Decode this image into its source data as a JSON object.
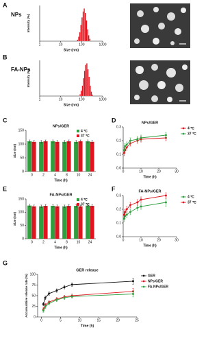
{
  "chart_data": [
    {
      "type": "histogram",
      "panel": "A",
      "label": "NPs",
      "xlabel": "Size (nm)",
      "ylabel": "Intensity (%)",
      "log_x": true,
      "xlim": [
        1,
        1000
      ],
      "xticks": [
        1,
        10,
        100,
        1000
      ],
      "ylim": [
        0,
        12
      ],
      "color": "#e0141e",
      "bins": [
        60,
        68,
        77,
        87,
        98,
        111,
        125,
        141,
        160,
        181,
        204,
        231,
        261
      ],
      "values": [
        0.5,
        1.5,
        3,
        5.5,
        8,
        10,
        11,
        9.5,
        7,
        4,
        2,
        0.8
      ]
    },
    {
      "type": "histogram",
      "panel": "B",
      "label": "FA-NPs",
      "xlabel": "Size (nm)",
      "ylabel": "Intensity (%)",
      "log_x": true,
      "xlim": [
        1,
        1000
      ],
      "xticks": [
        1,
        10,
        100,
        1000
      ],
      "ylim": [
        0,
        12
      ],
      "color": "#e0141e",
      "bins": [
        80,
        90,
        102,
        115,
        130,
        147,
        166,
        188,
        212,
        240,
        271,
        306,
        346
      ],
      "values": [
        0.6,
        1.8,
        3.5,
        6,
        8.5,
        10.5,
        11,
        9,
        6.5,
        3.5,
        1.5,
        0.5
      ]
    },
    {
      "type": "bar",
      "panel": "C",
      "title": "NPs/GER",
      "xlabel": "Time (h)",
      "ylabel": "Size (nm)",
      "legend": "upper right",
      "categories": [
        "0",
        "2",
        "4",
        "8",
        "10",
        "24"
      ],
      "ylim": [
        0,
        150
      ],
      "yticks": [
        0,
        50,
        100,
        150
      ],
      "series": [
        {
          "name": "4 ℃",
          "color": "#2e9e3e",
          "values": [
            110,
            108,
            110,
            108,
            108,
            110
          ],
          "errors": [
            5,
            5,
            5,
            5,
            5,
            5
          ]
        },
        {
          "name": "37 ℃",
          "color": "#e0141e",
          "values": [
            108,
            110,
            108,
            110,
            110,
            108
          ],
          "errors": [
            5,
            5,
            5,
            5,
            5,
            5
          ]
        }
      ]
    },
    {
      "type": "line",
      "panel": "D",
      "title": "NPs/GER",
      "xlabel": "Time (h)",
      "legend": "right",
      "x": [
        0.5,
        1,
        2,
        4,
        8,
        10,
        24
      ],
      "xlim": [
        0,
        30
      ],
      "xticks": [
        0,
        10,
        20,
        30
      ],
      "ylim": [
        0,
        0.3
      ],
      "yticks": [
        {
          "value": 0,
          "label": "0.0"
        },
        0.1,
        0.2,
        0.3
      ],
      "series": [
        {
          "name": "4 ℃",
          "color": "#e0141e",
          "values": [
            0.11,
            0.13,
            0.15,
            0.18,
            0.2,
            0.21,
            0.22
          ],
          "errors": [
            0.02,
            0.02,
            0.02,
            0.02,
            0.02,
            0.02,
            0.02
          ]
        },
        {
          "name": "37 ℃",
          "color": "#2e9e3e",
          "values": [
            0.13,
            0.16,
            0.17,
            0.2,
            0.21,
            0.22,
            0.24
          ],
          "errors": [
            0.02,
            0.02,
            0.02,
            0.02,
            0.02,
            0.02,
            0.02
          ]
        }
      ]
    },
    {
      "type": "bar",
      "panel": "E",
      "title": "FA-NPs/GER",
      "xlabel": "Time (h)",
      "ylabel": "Size (nm)",
      "legend": "upper right",
      "categories": [
        "0",
        "2",
        "4",
        "8",
        "10",
        "24"
      ],
      "ylim": [
        0,
        150
      ],
      "yticks": [
        0,
        50,
        100,
        150
      ],
      "series": [
        {
          "name": "4 ℃",
          "color": "#2e9e3e",
          "values": [
            125,
            122,
            124,
            122,
            124,
            125
          ],
          "errors": [
            5,
            5,
            5,
            5,
            5,
            5
          ]
        },
        {
          "name": "37 ℃",
          "color": "#e0141e",
          "values": [
            122,
            124,
            122,
            124,
            122,
            124
          ],
          "errors": [
            5,
            5,
            5,
            5,
            5,
            5
          ]
        }
      ]
    },
    {
      "type": "line",
      "panel": "F",
      "title": "FA-NPs/GER",
      "xlabel": "Time (h)",
      "legend": "right",
      "x": [
        0.5,
        1,
        2,
        4,
        8,
        10,
        24
      ],
      "xlim": [
        0,
        30
      ],
      "xticks": [
        0,
        10,
        20,
        30
      ],
      "ylim": [
        0,
        0.3
      ],
      "yticks": [
        {
          "value": 0,
          "label": "0.0"
        },
        0.1,
        0.2,
        0.3
      ],
      "series": [
        {
          "name": "4 ℃",
          "color": "#2e9e3e",
          "values": [
            0.13,
            0.15,
            0.16,
            0.18,
            0.21,
            0.22,
            0.25
          ],
          "errors": [
            0.02,
            0.02,
            0.02,
            0.02,
            0.02,
            0.02,
            0.03
          ]
        },
        {
          "name": "37 ℃",
          "color": "#e0141e",
          "values": [
            0.16,
            0.18,
            0.2,
            0.23,
            0.25,
            0.27,
            0.3
          ],
          "errors": [
            0.02,
            0.02,
            0.02,
            0.02,
            0.02,
            0.02,
            0.02
          ]
        }
      ]
    },
    {
      "type": "line",
      "panel": "G",
      "title": "GER release",
      "xlabel": "Time (h)",
      "ylabel": "Accumulative release rate (%)",
      "legend": "right",
      "x": [
        0.5,
        1,
        2,
        4,
        6,
        8,
        24
      ],
      "xlim": [
        -1,
        25
      ],
      "xticks": [
        0,
        5,
        10,
        15,
        20,
        25
      ],
      "ylim": [
        0,
        100
      ],
      "yticks": [
        0,
        25,
        50,
        75,
        100
      ],
      "series": [
        {
          "name": "GER",
          "color": "#111111",
          "values": [
            30,
            45,
            55,
            62,
            70,
            76,
            84
          ],
          "errors": [
            4,
            4,
            4,
            4,
            4,
            4,
            7
          ]
        },
        {
          "name": "NPs/GER",
          "color": "#e0141e",
          "values": [
            18,
            28,
            35,
            42,
            47,
            50,
            60
          ],
          "errors": [
            4,
            4,
            4,
            4,
            4,
            4,
            7
          ]
        },
        {
          "name": "FA-NPs/GER",
          "color": "#2e9e3e",
          "values": [
            15,
            24,
            32,
            40,
            45,
            48,
            54
          ],
          "errors": [
            4,
            4,
            4,
            4,
            4,
            4,
            7
          ]
        }
      ]
    }
  ]
}
